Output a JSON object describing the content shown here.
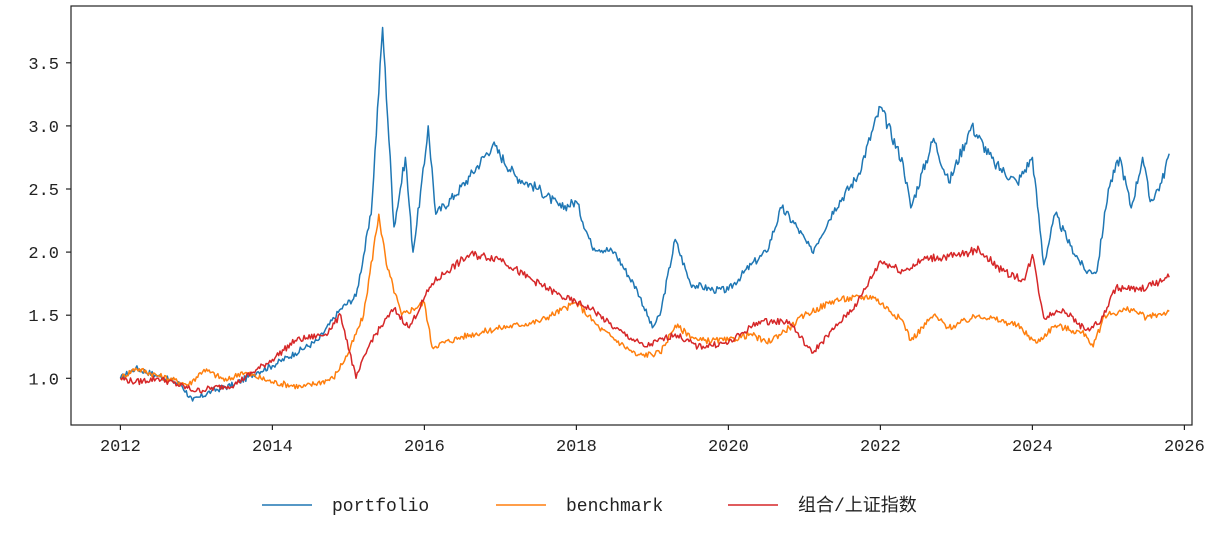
{
  "chart_data": {
    "type": "line",
    "title": "",
    "xlabel": "",
    "ylabel": "",
    "xlim": [
      2011.35,
      2026.1
    ],
    "ylim": [
      0.63,
      3.95
    ],
    "grid": false,
    "legend_placement": "bottom-center",
    "x_ticks": [
      "2012",
      "2014",
      "2016",
      "2018",
      "2020",
      "2022",
      "2024",
      "2026"
    ],
    "y_ticks": [
      "1.0",
      "1.5",
      "2.0",
      "2.5",
      "3.0",
      "3.5"
    ],
    "series": [
      {
        "name": "portfolio",
        "color": "#1f77b4",
        "x": [
          2012.0,
          2012.2,
          2012.5,
          2012.8,
          2012.95,
          2013.2,
          2013.5,
          2013.8,
          2014.0,
          2014.3,
          2014.6,
          2014.9,
          2015.1,
          2015.3,
          2015.45,
          2015.6,
          2015.75,
          2015.85,
          2016.0,
          2016.05,
          2016.15,
          2016.4,
          2016.6,
          2016.9,
          2017.2,
          2017.5,
          2017.8,
          2018.0,
          2018.2,
          2018.5,
          2018.8,
          2019.0,
          2019.1,
          2019.3,
          2019.5,
          2019.8,
          2020.0,
          2020.3,
          2020.5,
          2020.7,
          2020.9,
          2021.1,
          2021.4,
          2021.7,
          2022.0,
          2022.3,
          2022.4,
          2022.7,
          2022.9,
          2023.2,
          2023.5,
          2023.8,
          2024.0,
          2024.15,
          2024.3,
          2024.5,
          2024.7,
          2024.85,
          2025.0,
          2025.15,
          2025.3,
          2025.45,
          2025.55,
          2025.7,
          2025.8
        ],
        "y": [
          1.0,
          1.08,
          1.02,
          0.95,
          0.82,
          0.9,
          0.95,
          1.05,
          1.1,
          1.2,
          1.3,
          1.55,
          1.65,
          2.3,
          3.78,
          2.2,
          2.75,
          2.0,
          2.7,
          3.0,
          2.3,
          2.45,
          2.6,
          2.85,
          2.6,
          2.5,
          2.35,
          2.4,
          2.05,
          2.0,
          1.7,
          1.4,
          1.5,
          2.1,
          1.75,
          1.7,
          1.7,
          1.9,
          2.0,
          2.35,
          2.2,
          2.0,
          2.35,
          2.6,
          3.15,
          2.7,
          2.35,
          2.9,
          2.55,
          3.0,
          2.7,
          2.55,
          2.75,
          1.9,
          2.3,
          2.05,
          1.85,
          1.85,
          2.5,
          2.75,
          2.35,
          2.75,
          2.4,
          2.55,
          2.78
        ]
      },
      {
        "name": "benchmark",
        "color": "#ff7f0e",
        "x": [
          2012.0,
          2012.2,
          2012.5,
          2012.9,
          2013.1,
          2013.4,
          2013.6,
          2014.0,
          2014.4,
          2014.8,
          2015.0,
          2015.2,
          2015.4,
          2015.5,
          2015.7,
          2016.0,
          2016.1,
          2016.5,
          2017.0,
          2017.5,
          2018.0,
          2018.3,
          2018.8,
          2019.1,
          2019.3,
          2019.6,
          2020.0,
          2020.3,
          2020.5,
          2020.8,
          2021.0,
          2021.4,
          2021.9,
          2022.3,
          2022.4,
          2022.7,
          2022.9,
          2023.3,
          2023.8,
          2024.05,
          2024.3,
          2024.7,
          2024.8,
          2024.95,
          2025.3,
          2025.5,
          2025.8
        ],
        "y": [
          1.0,
          1.08,
          1.02,
          0.95,
          1.07,
          0.98,
          1.05,
          0.97,
          0.93,
          1.0,
          1.2,
          1.5,
          2.3,
          1.9,
          1.5,
          1.6,
          1.25,
          1.33,
          1.4,
          1.45,
          1.6,
          1.4,
          1.18,
          1.2,
          1.42,
          1.3,
          1.3,
          1.35,
          1.28,
          1.4,
          1.5,
          1.62,
          1.65,
          1.45,
          1.3,
          1.5,
          1.4,
          1.5,
          1.42,
          1.28,
          1.42,
          1.35,
          1.25,
          1.5,
          1.55,
          1.48,
          1.53
        ]
      },
      {
        "name": "组合/上证指数",
        "color": "#d62728",
        "x": [
          2012.0,
          2012.2,
          2012.5,
          2013.0,
          2013.5,
          2014.0,
          2014.3,
          2014.7,
          2014.9,
          2015.1,
          2015.3,
          2015.6,
          2015.8,
          2016.1,
          2016.3,
          2016.6,
          2017.0,
          2017.3,
          2017.8,
          2018.2,
          2018.5,
          2018.9,
          2019.3,
          2019.6,
          2020.0,
          2020.4,
          2020.8,
          2021.1,
          2021.4,
          2021.7,
          2022.0,
          2022.3,
          2022.6,
          2023.0,
          2023.3,
          2023.6,
          2023.9,
          2024.0,
          2024.15,
          2024.4,
          2024.7,
          2024.9,
          2025.1,
          2025.4,
          2025.8
        ],
        "y": [
          1.0,
          0.97,
          1.0,
          0.9,
          0.95,
          1.15,
          1.3,
          1.35,
          1.5,
          1.0,
          1.3,
          1.55,
          1.4,
          1.75,
          1.85,
          1.98,
          1.95,
          1.82,
          1.65,
          1.55,
          1.4,
          1.25,
          1.35,
          1.25,
          1.28,
          1.45,
          1.45,
          1.2,
          1.4,
          1.6,
          1.93,
          1.85,
          1.95,
          1.97,
          2.02,
          1.85,
          1.78,
          1.98,
          1.48,
          1.55,
          1.38,
          1.45,
          1.72,
          1.7,
          1.8
        ]
      }
    ]
  }
}
